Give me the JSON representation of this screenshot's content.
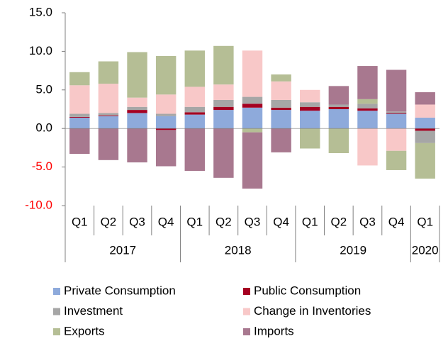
{
  "chart_data": {
    "type": "bar",
    "stacked": true,
    "categories": [
      "Q1",
      "Q2",
      "Q3",
      "Q4",
      "Q1",
      "Q2",
      "Q3",
      "Q4",
      "Q1",
      "Q2",
      "Q3",
      "Q4",
      "Q1"
    ],
    "years": [
      "2017",
      "2018",
      "2019",
      "2020"
    ],
    "series": [
      {
        "name": "Private Consumption",
        "color": "#8eaadb",
        "values": [
          1.4,
          1.6,
          2.0,
          1.6,
          1.8,
          2.4,
          2.7,
          2.4,
          2.3,
          2.5,
          2.3,
          1.9,
          1.4
        ]
      },
      {
        "name": "Public Consumption",
        "color": "#a50021",
        "values": [
          0.1,
          0.1,
          0.4,
          -0.2,
          0.3,
          0.4,
          0.5,
          0.3,
          0.5,
          0.3,
          0.3,
          0.1,
          -0.3
        ]
      },
      {
        "name": "Investment",
        "color": "#a6a6a6",
        "values": [
          0.4,
          0.3,
          0.4,
          0.3,
          0.7,
          0.9,
          0.9,
          1.0,
          0.6,
          0.3,
          0.6,
          0.2,
          -1.6
        ]
      },
      {
        "name": "Change in Inventories",
        "color": "#f8c8c8",
        "values": [
          3.7,
          3.8,
          1.2,
          2.5,
          2.6,
          2.0,
          6.0,
          2.4,
          1.6,
          0,
          -4.8,
          -2.9,
          1.7
        ]
      },
      {
        "name": "Exports",
        "color": "#b5be95",
        "values": [
          1.7,
          2.9,
          5.9,
          5.0,
          4.7,
          5.0,
          -0.5,
          0.9,
          -2.6,
          -3.2,
          0.6,
          -2.5,
          -4.6
        ]
      },
      {
        "name": "Imports",
        "color": "#a8788f",
        "values": [
          -3.3,
          -4.1,
          -4.4,
          -4.7,
          -5.5,
          -6.4,
          -7.3,
          -3.1,
          0,
          2.4,
          4.3,
          5.4,
          1.6
        ]
      }
    ],
    "ylim": [
      -10,
      15
    ],
    "yticks": [
      {
        "value": -10,
        "label": "-10.0"
      },
      {
        "value": -5,
        "label": "-5.0"
      },
      {
        "value": 0,
        "label": "0.0"
      },
      {
        "value": 5,
        "label": "5.0"
      },
      {
        "value": 10,
        "label": "10.0"
      },
      {
        "value": 15,
        "label": "15.0"
      }
    ]
  }
}
